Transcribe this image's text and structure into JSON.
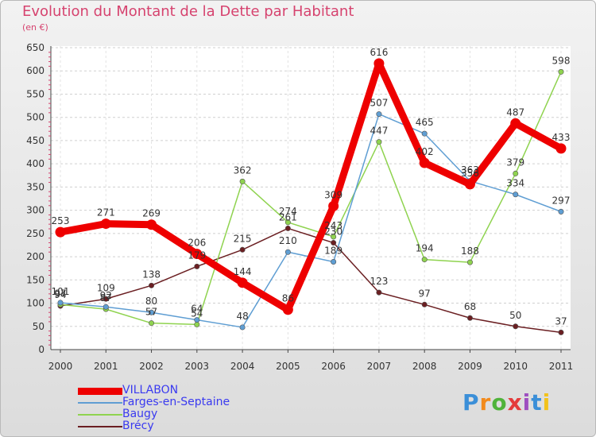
{
  "header": {
    "title": "Evolution du Montant de la Dette par Habitant",
    "unit": "(en €)"
  },
  "logo": {
    "text": "Proxiti",
    "letter_colors": [
      "#3b8fd8",
      "#f28a1b",
      "#4fb33a",
      "#e43b3b",
      "#9e4fc0",
      "#3b8fd8",
      "#f2c21b"
    ]
  },
  "chart_data": {
    "type": "line",
    "title": "Evolution du Montant de la Dette par Habitant",
    "subtitle": "(en €)",
    "xlabel": "",
    "ylabel": "",
    "x": [
      "2000",
      "2001",
      "2002",
      "2003",
      "2004",
      "2005",
      "2006",
      "2007",
      "2008",
      "2009",
      "2010",
      "2011"
    ],
    "ylim": [
      0,
      650
    ],
    "yticks": [
      0,
      50,
      100,
      150,
      200,
      250,
      300,
      350,
      400,
      450,
      500,
      550,
      600,
      650
    ],
    "grid": "horizontal dashed",
    "legend_position": "bottom-left",
    "series": [
      {
        "name": "VILLABON",
        "color": "#ee0000",
        "values": [
          253,
          271,
          269,
          206,
          144,
          86,
          309,
          616,
          402,
          356,
          487,
          433
        ]
      },
      {
        "name": "Farges-en-Septaine",
        "color": "#5f9ed3",
        "values": [
          101,
          92,
          80,
          64,
          48,
          210,
          189,
          507,
          465,
          363,
          334,
          297
        ]
      },
      {
        "name": "Baugy",
        "color": "#8fd34f",
        "values": [
          97,
          87,
          57,
          54,
          362,
          274,
          243,
          447,
          194,
          188,
          379,
          598
        ]
      },
      {
        "name": "Brécy",
        "color": "#6b1f22",
        "values": [
          94,
          109,
          138,
          179,
          215,
          261,
          230,
          123,
          97,
          68,
          50,
          37
        ]
      }
    ]
  }
}
